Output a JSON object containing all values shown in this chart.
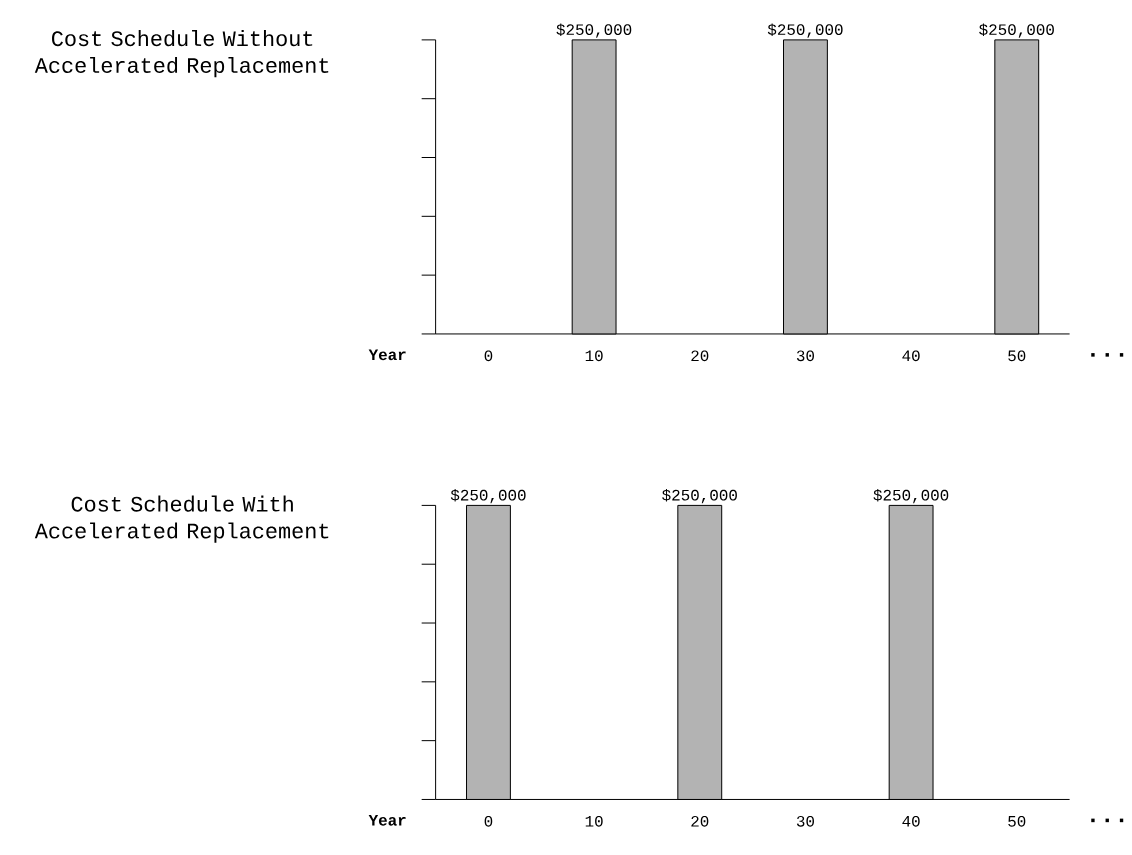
{
  "chart_data": [
    {
      "type": "bar",
      "title": "Cost Schedule Without Accelerated Replacement",
      "xlabel": "Year",
      "categories": [
        "0",
        "10",
        "20",
        "30",
        "40",
        "50"
      ],
      "values": [
        null,
        250000,
        null,
        250000,
        null,
        250000
      ],
      "value_labels": [
        null,
        "$250,000",
        null,
        "$250,000",
        null,
        "$250,000"
      ],
      "color": "#b3b3b3",
      "ylim": [
        0,
        250000
      ],
      "yticks": [
        {
          "value": 0,
          "label": null
        },
        {
          "value": 50000,
          "label": null
        },
        {
          "value": 100000,
          "label": null
        },
        {
          "value": 150000,
          "label": null
        },
        {
          "value": 200000,
          "label": null
        },
        {
          "value": 250000,
          "label": null
        }
      ],
      "tick_labels": "x",
      "annotations": [
        "..."
      ]
    },
    {
      "type": "bar",
      "title": "Cost Schedule With Accelerated Replacement",
      "xlabel": "Year",
      "categories": [
        "0",
        "10",
        "20",
        "30",
        "40",
        "50"
      ],
      "values": [
        250000,
        null,
        250000,
        null,
        250000,
        null
      ],
      "value_labels": [
        "$250,000",
        null,
        "$250,000",
        null,
        "$250,000",
        null
      ],
      "color": "#b3b3b3",
      "ylim": [
        0,
        250000
      ],
      "yticks": [
        {
          "value": 0,
          "label": null
        },
        {
          "value": 50000,
          "label": null
        },
        {
          "value": 100000,
          "label": null
        },
        {
          "value": 150000,
          "label": null
        },
        {
          "value": 200000,
          "label": null
        },
        {
          "value": 250000,
          "label": null
        }
      ],
      "tick_labels": "x",
      "annotations": [
        "..."
      ]
    }
  ]
}
